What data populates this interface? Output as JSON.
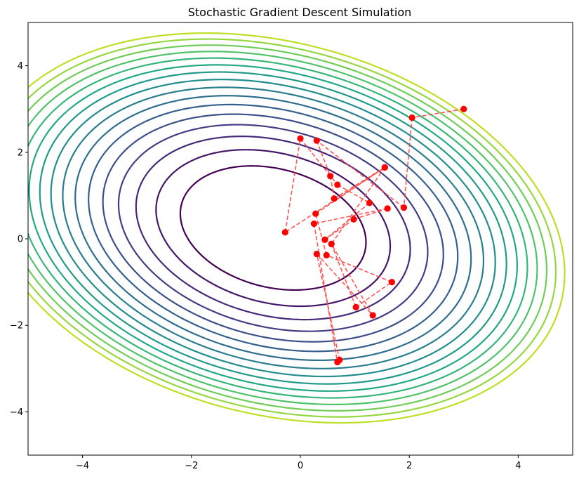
{
  "chart_data": {
    "type": "line",
    "title": "Stochastic Gradient Descent Simulation",
    "xlabel": "",
    "ylabel": "",
    "xlim": [
      -5,
      5
    ],
    "ylim": [
      -5,
      5
    ],
    "xticks": [
      -4,
      -2,
      0,
      2,
      4
    ],
    "yticks": [
      -4,
      -2,
      0,
      2,
      4
    ],
    "xtick_labels": [
      "−4",
      "−2",
      "0",
      "2",
      "4"
    ],
    "ytick_labels": [
      "−4",
      "−2",
      "0",
      "2",
      "4"
    ],
    "grid": false,
    "legend": "none",
    "contour": {
      "function": "quadratic bowl",
      "center": [
        -0.5,
        0.25
      ],
      "levels": [
        2.2,
        3.5,
        4.8,
        6.1,
        7.4,
        8.7,
        10.0,
        11.3,
        12.6,
        13.9,
        15.2,
        16.5,
        17.8,
        19.1,
        20.4,
        21.7
      ],
      "colormap": "viridis"
    },
    "path": {
      "marker_color": "#ff0000",
      "line_color": "#ff4444",
      "line_style": "dashed",
      "x": [
        3.0,
        2.05,
        1.9,
        0.3,
        0.55,
        0.62,
        1.55,
        -0.28,
        0.0,
        0.68,
        1.27,
        0.45,
        0.98,
        1.6,
        0.25,
        0.68,
        0.72,
        0.3,
        1.33,
        0.57,
        1.02,
        1.68,
        0.48,
        0.28,
        1.55,
        0.57
      ],
      "y": [
        3.0,
        2.8,
        0.72,
        2.27,
        1.45,
        0.93,
        1.65,
        0.15,
        2.32,
        1.25,
        0.83,
        -0.02,
        0.45,
        0.7,
        0.35,
        -2.85,
        -2.8,
        -0.35,
        -1.77,
        -0.12,
        -1.58,
        -1.0,
        -0.38,
        0.58,
        1.65,
        -0.12
      ]
    }
  }
}
